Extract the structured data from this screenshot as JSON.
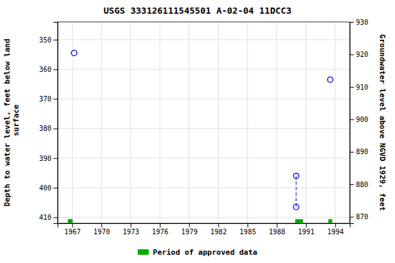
{
  "chart_data": {
    "type": "scatter",
    "title": "USGS 333126111545501 A-02-04 11DCC3",
    "y_label": "Depth to water level, feet below land\n surface",
    "y2_label": "Groundwater level above NGVD 1929, feet",
    "xlim": [
      1965.5,
      1995.5
    ],
    "xticks": [
      1967,
      1970,
      1973,
      1976,
      1979,
      1982,
      1985,
      1988,
      1991,
      1994
    ],
    "ylim": [
      412,
      344
    ],
    "yticks": [
      350,
      360,
      370,
      380,
      390,
      400,
      410
    ],
    "y2lim": [
      868,
      930
    ],
    "y2ticks": [
      870,
      880,
      890,
      900,
      910,
      920,
      930
    ],
    "grid": true,
    "legend": "bottom",
    "series": [
      {
        "type": "scatter",
        "marker": "circle",
        "color": "#0000cc",
        "x": [
          1967.2,
          1990.0,
          1990.0,
          1993.5
        ],
        "values": [
          354.5,
          396.0,
          406.5,
          363.5
        ]
      },
      {
        "type": "line",
        "line_style": "dashed",
        "color": "#0000cc",
        "x": [
          1990.0,
          1990.0
        ],
        "values": [
          396.0,
          406.5
        ]
      },
      {
        "type": "period",
        "name": "Period of approved data",
        "color": "#00aa00",
        "x": [
          1966.8,
          1990.3,
          1993.5
        ],
        "widths": [
          0.5,
          0.8,
          0.4
        ]
      }
    ]
  }
}
